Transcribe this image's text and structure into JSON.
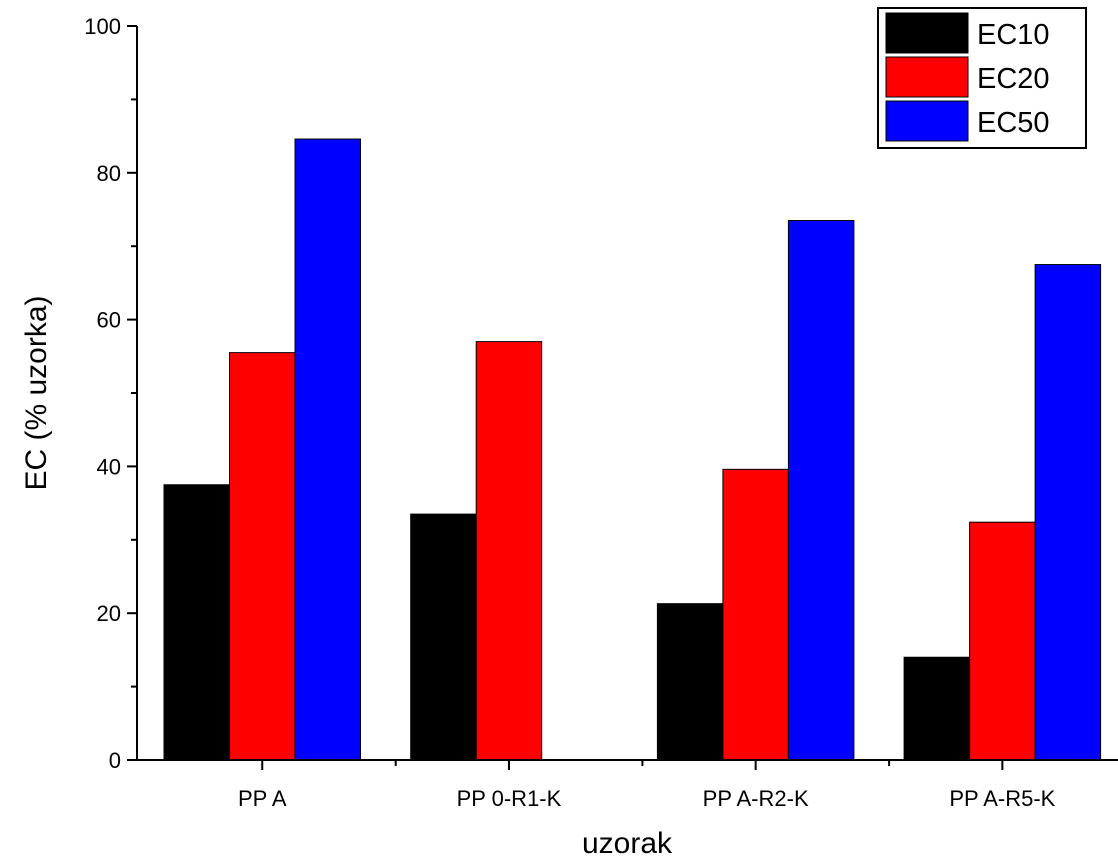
{
  "chart_data": {
    "type": "bar",
    "title": "",
    "xlabel": "uzorak",
    "ylabel": "EC (% uzorka)",
    "ylim": [
      0,
      100
    ],
    "yticks": [
      0,
      20,
      40,
      60,
      80,
      100
    ],
    "y_minor_step": 10,
    "grid": false,
    "legend_position": "top-right",
    "categories": [
      "PP A",
      "PP 0-R1-K",
      "PP A-R2-K",
      "PP A-R5-K"
    ],
    "series": [
      {
        "name": "EC10",
        "color": "#000000",
        "values": [
          37.5,
          33.5,
          21.3,
          14.0
        ]
      },
      {
        "name": "EC20",
        "color": "#ff0000",
        "values": [
          55.5,
          57.0,
          39.6,
          32.4
        ]
      },
      {
        "name": "EC50",
        "color": "#0000ff",
        "values": [
          84.6,
          null,
          73.5,
          67.5
        ]
      }
    ]
  }
}
